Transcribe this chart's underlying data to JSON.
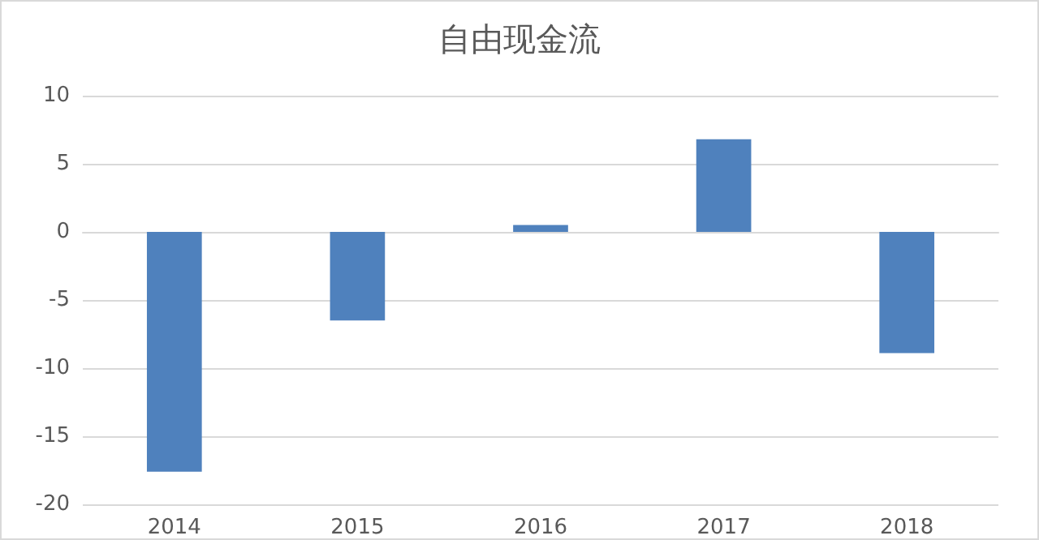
{
  "chart_data": {
    "type": "bar",
    "title": "自由现金流",
    "categories": [
      "2014",
      "2015",
      "2016",
      "2017",
      "2018"
    ],
    "values": [
      -17.6,
      -6.5,
      0.5,
      6.8,
      -8.9
    ],
    "color": "#4f81bd",
    "ylim": [
      -20,
      10
    ],
    "yticks": [
      -20,
      -15,
      -10,
      -5,
      0,
      5,
      10
    ],
    "grid": "y"
  }
}
